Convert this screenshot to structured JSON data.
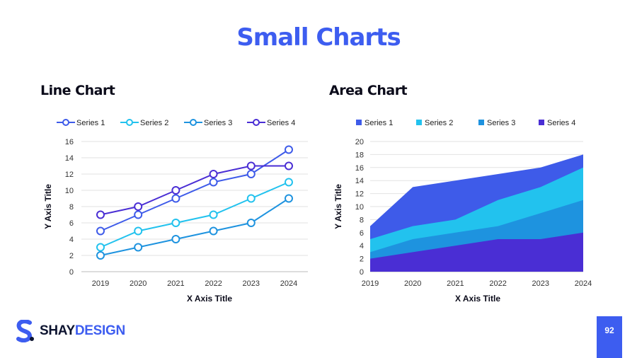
{
  "page": {
    "title": "Small Charts",
    "page_number": "92",
    "brand_a": "SHAY",
    "brand_b": "DESIGN"
  },
  "colors": {
    "accent": "#3d5df0",
    "series1": "#3e5be9",
    "series2": "#22c2ee",
    "series3": "#1e93df",
    "series4": "#4a2ed4"
  },
  "chart_data": [
    {
      "type": "line",
      "heading": "Line Chart",
      "xlabel": "X Axis Title",
      "ylabel": "Y Axis Title",
      "categories": [
        "2019",
        "2020",
        "2021",
        "2022",
        "2023",
        "2024"
      ],
      "ylim": [
        0,
        16
      ],
      "yticks": [
        0,
        2,
        4,
        6,
        8,
        10,
        12,
        14,
        16
      ],
      "grid": true,
      "legend": "top",
      "series": [
        {
          "name": "Series 1",
          "values": [
            5,
            7,
            9,
            11,
            12,
            15
          ]
        },
        {
          "name": "Series 2",
          "values": [
            3,
            5,
            6,
            7,
            9,
            11
          ]
        },
        {
          "name": "Series 3",
          "values": [
            2,
            3,
            4,
            5,
            6,
            9
          ]
        },
        {
          "name": "Series 4",
          "values": [
            7,
            8,
            10,
            12,
            13,
            13
          ]
        }
      ]
    },
    {
      "type": "area",
      "heading": "Area Chart",
      "xlabel": "X Axis Title",
      "ylabel": "Y Axis Title",
      "categories": [
        "2019",
        "2020",
        "2021",
        "2022",
        "2023",
        "2024"
      ],
      "ylim": [
        0,
        20
      ],
      "yticks": [
        0,
        2,
        4,
        6,
        8,
        10,
        12,
        14,
        16,
        18,
        20
      ],
      "grid": true,
      "legend": "top",
      "series": [
        {
          "name": "Series 1",
          "values": [
            7,
            13,
            14,
            15,
            16,
            18
          ]
        },
        {
          "name": "Series 2",
          "values": [
            5,
            7,
            8,
            11,
            13,
            16
          ]
        },
        {
          "name": "Series 3",
          "values": [
            3,
            5,
            6,
            7,
            9,
            11
          ]
        },
        {
          "name": "Series 4",
          "values": [
            2,
            3,
            4,
            5,
            5,
            6
          ]
        }
      ]
    }
  ]
}
